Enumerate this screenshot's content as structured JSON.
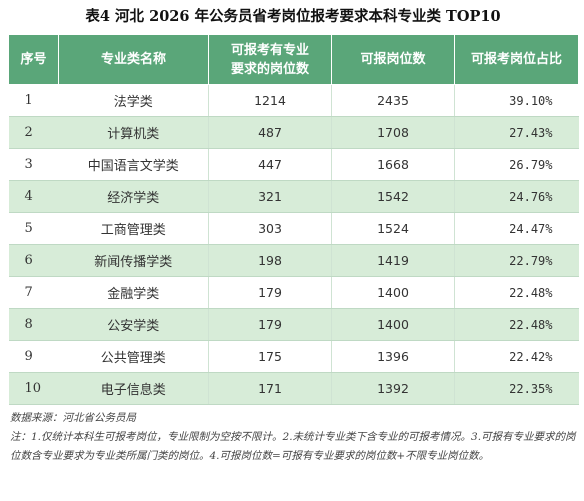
{
  "title": "表4  河北 2026 年公务员省考岗位报考要求本科专业类 TOP10",
  "headers": [
    "序号",
    "专业类名称",
    "可报考有专业要求的岗位数",
    "可报岗位数",
    "可报考岗位占比"
  ],
  "header_line1": "可报考有专业",
  "header_line2": "要求的岗位数",
  "rows": [
    {
      "rank": "1",
      "name": "法学类",
      "req": "1214",
      "total": "2435",
      "pct": "39.10%"
    },
    {
      "rank": "2",
      "name": "计算机类",
      "req": "487",
      "total": "1708",
      "pct": "27.43%"
    },
    {
      "rank": "3",
      "name": "中国语言文学类",
      "req": "447",
      "total": "1668",
      "pct": "26.79%"
    },
    {
      "rank": "4",
      "name": "经济学类",
      "req": "321",
      "total": "1542",
      "pct": "24.76%"
    },
    {
      "rank": "5",
      "name": "工商管理类",
      "req": "303",
      "total": "1524",
      "pct": "24.47%"
    },
    {
      "rank": "6",
      "name": "新闻传播学类",
      "req": "198",
      "total": "1419",
      "pct": "22.79%"
    },
    {
      "rank": "7",
      "name": "金融学类",
      "req": "179",
      "total": "1400",
      "pct": "22.48%"
    },
    {
      "rank": "8",
      "name": "公安学类",
      "req": "179",
      "total": "1400",
      "pct": "22.48%"
    },
    {
      "rank": "9",
      "name": "公共管理类",
      "req": "175",
      "total": "1396",
      "pct": "22.42%"
    },
    {
      "rank": "10",
      "name": "电子信息类",
      "req": "171",
      "total": "1392",
      "pct": "22.35%"
    }
  ],
  "source": "数据来源：河北省公务员局",
  "note": "注：1.仅统计本科生可报考岗位，专业限制为空按不限计。2.未统计专业类下含专业的可报考情况。3.可报有专业要求的岗位数含专业要求为专业类所属门类的岗位。4.可报岗位数=可报有专业要求的岗位数+不限专业岗位数。",
  "colors": {
    "header_bg": "#5aa679",
    "stripe": "#d7ecd8"
  }
}
